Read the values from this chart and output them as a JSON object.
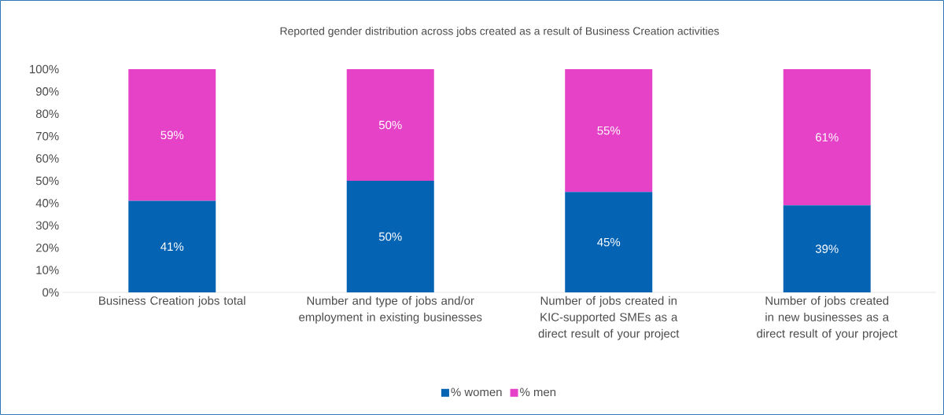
{
  "chart_data": {
    "type": "bar",
    "stacked": true,
    "title": "Reported gender distribution across jobs created as a result of Business Creation activities",
    "categories": [
      "Business Creation jobs total",
      "Number and type of jobs and/or employment in existing businesses",
      "Number of jobs created in KIC-supported SMEs as a direct result of your project",
      "Number of jobs created in new businesses as a direct result of your project"
    ],
    "series": [
      {
        "name": "% women",
        "color": "#0563b4",
        "values": [
          41,
          50,
          45,
          39
        ],
        "value_labels": [
          "41%",
          "50%",
          "45%",
          "39%"
        ]
      },
      {
        "name": "% men",
        "color": "#e542c8",
        "values": [
          59,
          50,
          55,
          61
        ],
        "value_labels": [
          "59%",
          "50%",
          "55%",
          "61%"
        ]
      }
    ],
    "ylim": [
      0,
      100
    ],
    "yticks": [
      {
        "value": 0,
        "label": "0%"
      },
      {
        "value": 10,
        "label": "10%"
      },
      {
        "value": 20,
        "label": "20%"
      },
      {
        "value": 30,
        "label": "30%"
      },
      {
        "value": 40,
        "label": "40%"
      },
      {
        "value": 50,
        "label": "50%"
      },
      {
        "value": 60,
        "label": "60%"
      },
      {
        "value": 70,
        "label": "70%"
      },
      {
        "value": 80,
        "label": "80%"
      },
      {
        "value": 90,
        "label": "90%"
      },
      {
        "value": 100,
        "label": "100%"
      }
    ],
    "legend": "bottom"
  }
}
